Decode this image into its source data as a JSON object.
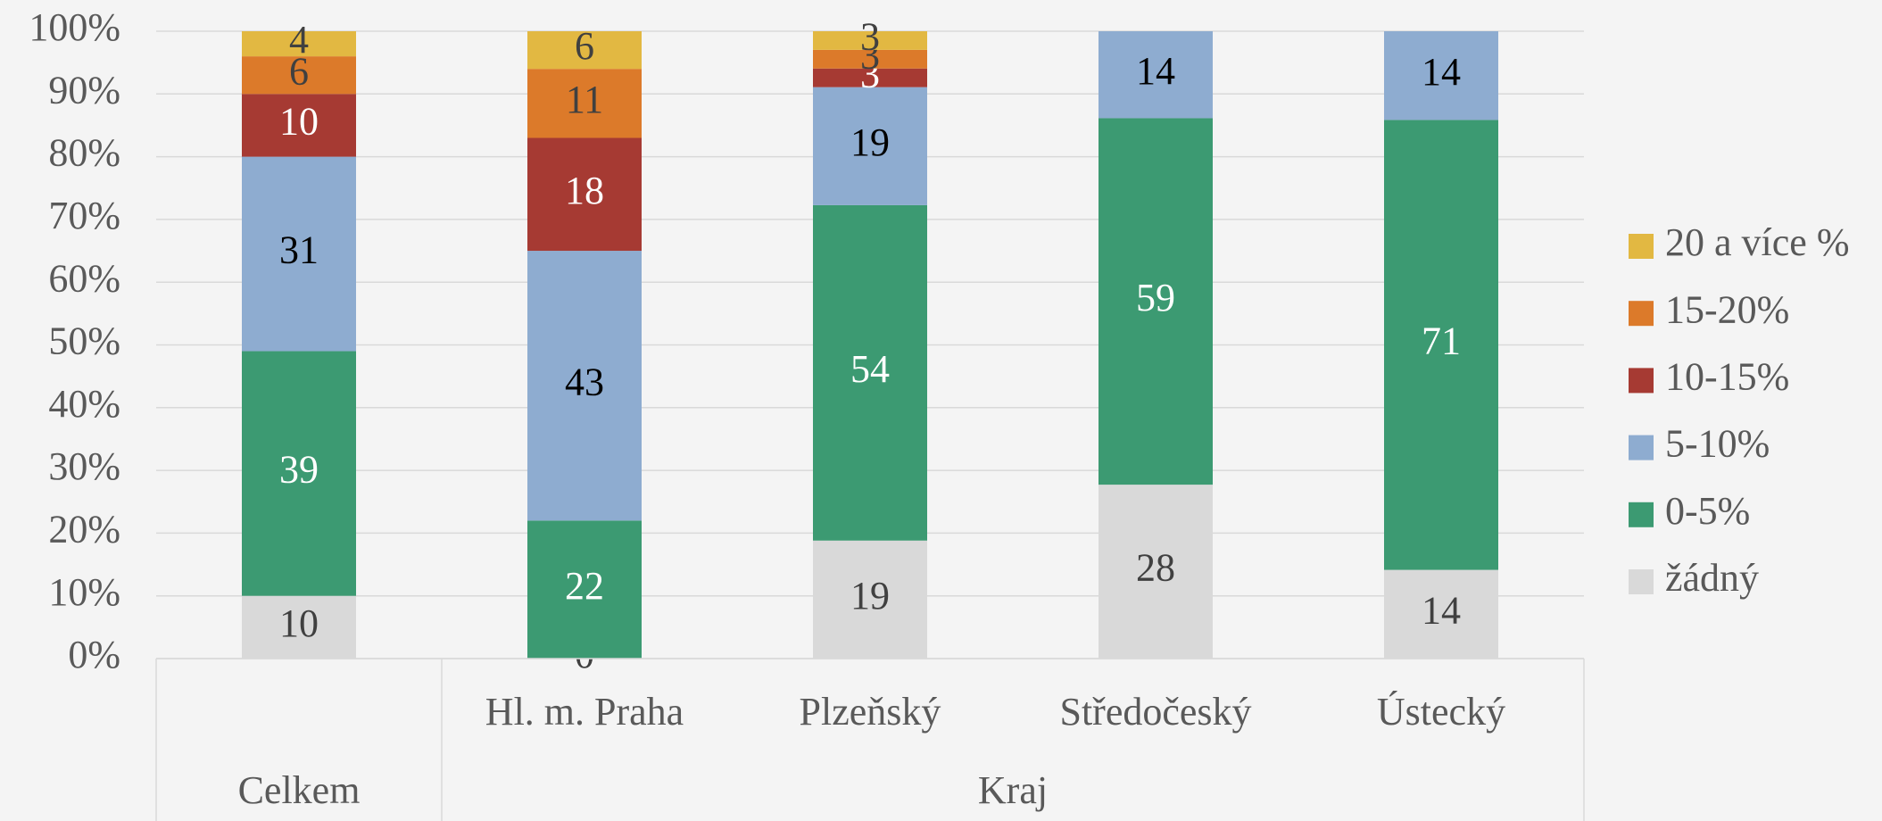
{
  "chart_data": {
    "type": "bar",
    "stacked": "percent",
    "categories": [
      null,
      "Hl. m. Praha",
      "Plzeňský",
      "Středočeský",
      "Ústecký"
    ],
    "category_groups": [
      {
        "label": "Celkem",
        "span": 1
      },
      {
        "label": "Kraj",
        "span": 4
      }
    ],
    "series": [
      {
        "name": "žádný",
        "color": "#d9d9d9",
        "values": [
          10,
          0,
          19,
          28,
          14
        ]
      },
      {
        "name": "0-5%",
        "color": "#3c9a72",
        "values": [
          39,
          22,
          54,
          59,
          71
        ]
      },
      {
        "name": "5-10%",
        "color": "#8eacd0",
        "values": [
          31,
          43,
          19,
          14,
          14
        ]
      },
      {
        "name": "10-15%",
        "color": "#a63a33",
        "values": [
          10,
          18,
          3,
          null,
          null
        ]
      },
      {
        "name": "15-20%",
        "color": "#dc7a2a",
        "values": [
          6,
          11,
          3,
          null,
          null
        ]
      },
      {
        "name": "20 a více %",
        "color": "#e2b842",
        "values": [
          4,
          6,
          3,
          null,
          null
        ]
      }
    ],
    "ylim": [
      0,
      100
    ],
    "yticks": [
      {
        "value": 0,
        "label": "0%"
      },
      {
        "value": 10,
        "label": "10%"
      },
      {
        "value": 20,
        "label": "20%"
      },
      {
        "value": 30,
        "label": "30%"
      },
      {
        "value": 40,
        "label": "40%"
      },
      {
        "value": 50,
        "label": "50%"
      },
      {
        "value": 60,
        "label": "60%"
      },
      {
        "value": 70,
        "label": "70%"
      },
      {
        "value": 80,
        "label": "80%"
      },
      {
        "value": 90,
        "label": "90%"
      },
      {
        "value": 100,
        "label": "100%"
      }
    ],
    "grid": true,
    "legend": "right"
  }
}
